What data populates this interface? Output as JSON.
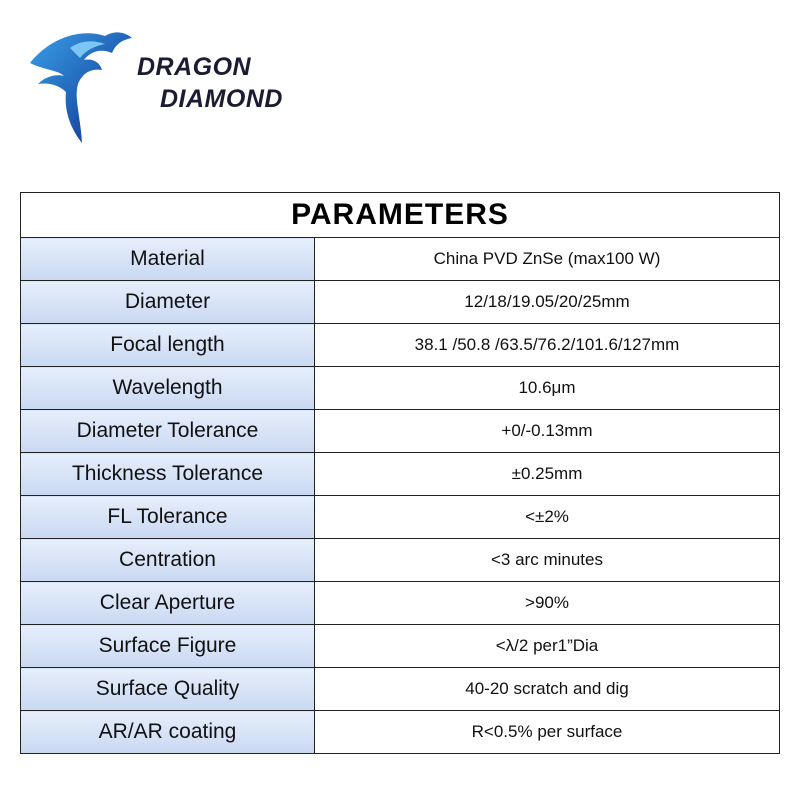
{
  "header": {
    "brand": [
      "DRAGON",
      "DIAMOND"
    ]
  },
  "table": {
    "title": "PARAMETERS",
    "rows": [
      [
        "Material",
        "China PVD ZnSe (max100 W)"
      ],
      [
        "Diameter",
        "12/18/19.05/20/25mm"
      ],
      [
        "Focal length",
        "38.1 /50.8 /63.5/76.2/101.6/127mm"
      ],
      [
        "Wavelength",
        "10.6μm"
      ],
      [
        "Diameter Tolerance",
        "+0/-0.13mm"
      ],
      [
        "Thickness Tolerance",
        "±0.25mm"
      ],
      [
        "FL Tolerance",
        "<±2%"
      ],
      [
        "Centration",
        "<3 arc minutes"
      ],
      [
        "Clear Aperture",
        ">90%"
      ],
      [
        "Surface Figure",
        "<λ/2 per1”Dia"
      ],
      [
        "Surface Quality",
        "40-20 scratch and dig"
      ],
      [
        "AR/AR coating",
        "R<0.5% per surface"
      ]
    ]
  }
}
